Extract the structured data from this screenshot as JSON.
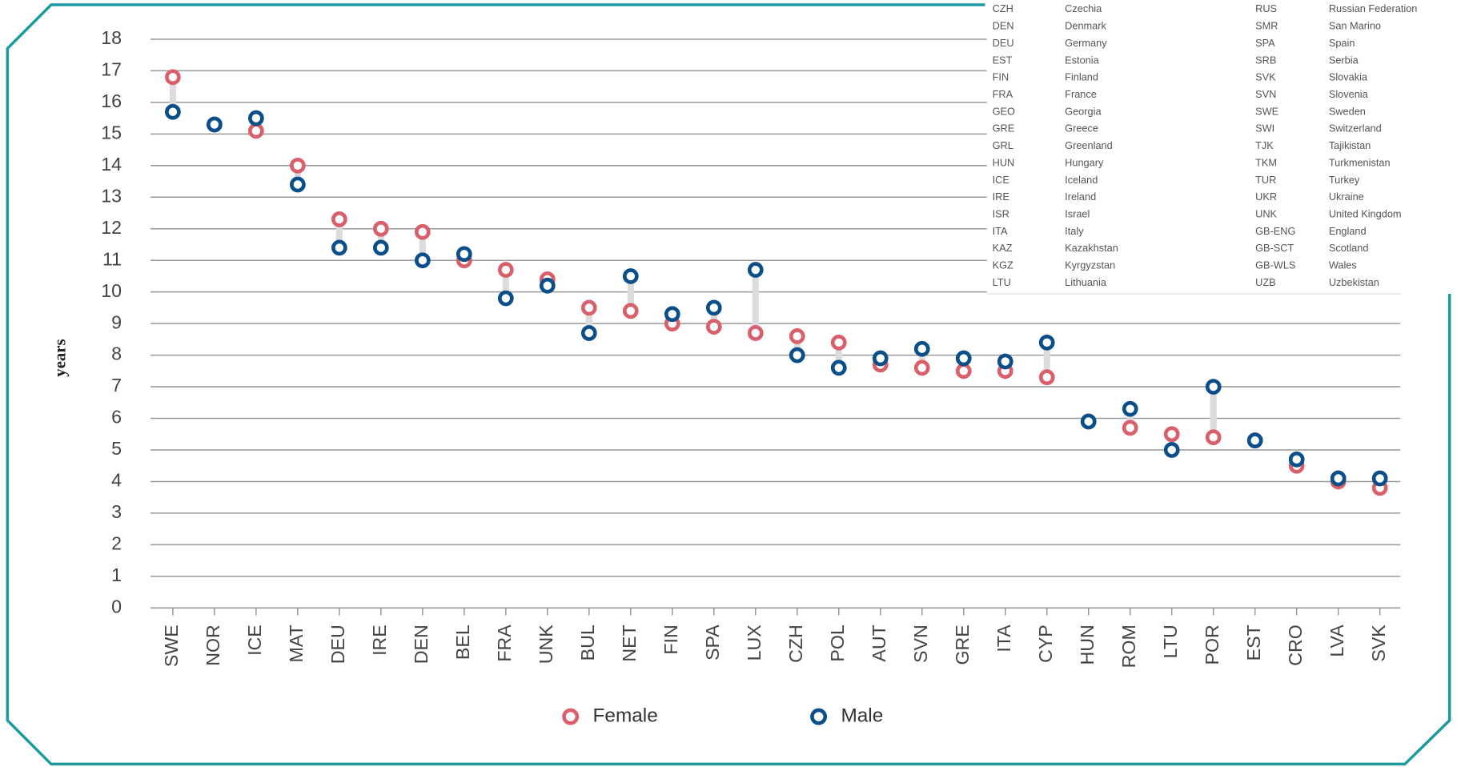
{
  "chart_data": {
    "type": "dumbbell",
    "y_label": "years",
    "categories": [
      "SWE",
      "NOR",
      "ICE",
      "MAT",
      "DEU",
      "IRE",
      "DEN",
      "BEL",
      "FRA",
      "UNK",
      "BUL",
      "NET",
      "FIN",
      "SPA",
      "LUX",
      "CZH",
      "POL",
      "AUT",
      "SVN",
      "GRE",
      "ITA",
      "CYP",
      "HUN",
      "ROM",
      "LTU",
      "POR",
      "EST",
      "CRO",
      "LVA",
      "SVK"
    ],
    "series": [
      {
        "name": "Female",
        "color": "#d9606a",
        "values": [
          16.8,
          15.3,
          15.1,
          14.0,
          12.3,
          12.0,
          11.9,
          11.0,
          10.7,
          10.4,
          9.5,
          9.4,
          9.0,
          8.9,
          8.7,
          8.6,
          8.4,
          7.7,
          7.6,
          7.5,
          7.5,
          7.3,
          5.9,
          5.7,
          5.5,
          5.4,
          5.3,
          4.5,
          4.0,
          3.8
        ]
      },
      {
        "name": "Male",
        "color": "#0b4f8a",
        "values": [
          15.7,
          15.3,
          15.5,
          13.4,
          11.4,
          11.4,
          11.0,
          11.2,
          9.8,
          10.2,
          8.7,
          10.5,
          9.3,
          9.5,
          10.7,
          8.0,
          7.6,
          7.9,
          8.2,
          7.9,
          7.8,
          8.4,
          5.9,
          6.3,
          5.0,
          7.0,
          5.3,
          4.7,
          4.1,
          4.1
        ]
      }
    ],
    "ylim": [
      0,
      18
    ],
    "yticks": [
      0,
      1,
      2,
      3,
      4,
      5,
      6,
      7,
      8,
      9,
      10,
      11,
      12,
      13,
      14,
      15,
      16,
      17,
      18
    ],
    "grid": true,
    "connector_color": "#dcdcdc",
    "country_codes": [
      [
        [
          "CZH",
          "Czechia"
        ],
        [
          "DEN",
          "Denmark"
        ],
        [
          "DEU",
          "Germany"
        ],
        [
          "EST",
          "Estonia"
        ],
        [
          "FIN",
          "Finland"
        ],
        [
          "FRA",
          "France"
        ],
        [
          "GEO",
          "Georgia"
        ],
        [
          "GRE",
          "Greece"
        ],
        [
          "GRL",
          "Greenland"
        ],
        [
          "HUN",
          "Hungary"
        ],
        [
          "ICE",
          "Iceland"
        ],
        [
          "IRE",
          "Ireland"
        ],
        [
          "ISR",
          "Israel"
        ],
        [
          "ITA",
          "Italy"
        ],
        [
          "KAZ",
          "Kazakhstan"
        ],
        [
          "KGZ",
          "Kyrgyzstan"
        ],
        [
          "LTU",
          "Lithuania"
        ]
      ],
      [
        [
          "RUS",
          "Russian Federation"
        ],
        [
          "SMR",
          "San Marino"
        ],
        [
          "SPA",
          "Spain"
        ],
        [
          "SRB",
          "Serbia"
        ],
        [
          "SVK",
          "Slovakia"
        ],
        [
          "SVN",
          "Slovenia"
        ],
        [
          "SWE",
          "Sweden"
        ],
        [
          "SWI",
          "Switzerland"
        ],
        [
          "TJK",
          "Tajikistan"
        ],
        [
          "TKM",
          "Turkmenistan"
        ],
        [
          "TUR",
          "Turkey"
        ],
        [
          "UKR",
          "Ukraine"
        ],
        [
          "UNK",
          "United Kingdom"
        ],
        [
          "GB-ENG",
          "England"
        ],
        [
          "GB-SCT",
          "Scotland"
        ],
        [
          "GB-WLS",
          "Wales"
        ],
        [
          "UZB",
          "Uzbekistan"
        ]
      ]
    ]
  }
}
